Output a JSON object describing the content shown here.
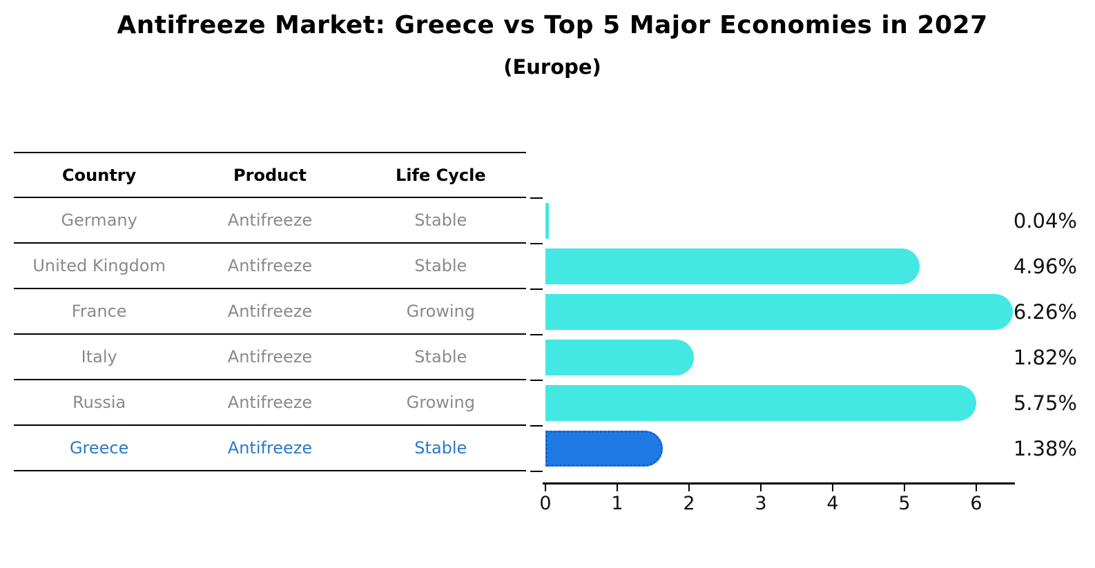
{
  "title": "Antifreeze Market: Greece vs Top 5 Major Economies in 2027",
  "subtitle": "(Europe)",
  "table": {
    "headers": [
      "Country",
      "Product",
      "Life Cycle"
    ],
    "rows": [
      {
        "country": "Germany",
        "product": "Antifreeze",
        "life_cycle": "Stable",
        "highlight": false
      },
      {
        "country": "United Kingdom",
        "product": "Antifreeze",
        "life_cycle": "Stable",
        "highlight": false
      },
      {
        "country": "France",
        "product": "Antifreeze",
        "life_cycle": "Growing",
        "highlight": false
      },
      {
        "country": "Italy",
        "product": "Antifreeze",
        "life_cycle": "Stable",
        "highlight": false
      },
      {
        "country": "Russia",
        "product": "Antifreeze",
        "life_cycle": "Growing",
        "highlight": false
      },
      {
        "country": "Greece",
        "product": "Antifreeze",
        "life_cycle": "Stable",
        "highlight": true
      }
    ]
  },
  "chart_data": {
    "type": "bar",
    "orientation": "horizontal",
    "title": "Antifreeze Market: Greece vs Top 5 Major Economies in 2027",
    "subtitle": "(Europe)",
    "categories": [
      "Germany",
      "United Kingdom",
      "France",
      "Italy",
      "Russia",
      "Greece"
    ],
    "values": [
      0.04,
      4.96,
      6.26,
      1.82,
      5.75,
      1.38
    ],
    "value_labels": [
      "0.04%",
      "4.96%",
      "6.26%",
      "1.82%",
      "5.75%",
      "1.38%"
    ],
    "xlabel": "",
    "ylabel": "",
    "xlim": [
      0,
      6.55
    ],
    "xticks": [
      "0",
      "1",
      "2",
      "3",
      "4",
      "5",
      "6"
    ],
    "grid": false,
    "legend": false,
    "highlight_index": 5,
    "bar_color": "#43e8e2",
    "highlight_bar_color": "#207ae6",
    "highlight_border_color": "#1260cc",
    "highlight_text_color": "#2979cb",
    "table_text_color": "#8a8a8a"
  }
}
